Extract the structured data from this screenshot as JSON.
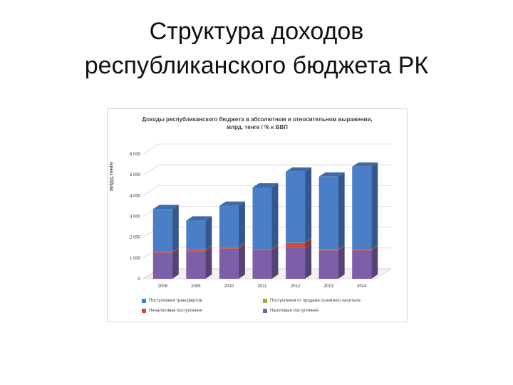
{
  "slide": {
    "title": "Структура доходов\nреспубликанского бюджета РК"
  },
  "chart_data": {
    "type": "bar",
    "stacked": true,
    "three_d": true,
    "title": "Доходы республиканского бюджета в абсолютном и относительном выражении,\nмлрд. тенге / % к ВВП",
    "ylabel": "млрд.тенге",
    "xlabel": "",
    "ylim": [
      0,
      6000
    ],
    "y_ticks": [
      "0",
      "1 000",
      "2 000",
      "3 000",
      "4 000",
      "5 000",
      "6 000"
    ],
    "categories": [
      "2008",
      "2009",
      "2010",
      "2011",
      "2012",
      "2013",
      "2014"
    ],
    "grid": true,
    "legend_position": "bottom",
    "series": [
      {
        "name": "Налоговые поступления",
        "color": "#7b5fa8",
        "values": [
          1250,
          1330,
          1450,
          1370,
          1480,
          1360,
          1350
        ]
      },
      {
        "name": "Неналоговые поступления",
        "color": "#d04a3e",
        "values": [
          40,
          50,
          60,
          60,
          240,
          40,
          40
        ]
      },
      {
        "name": "Поступления от продажи основного капитала",
        "color": "#8cb43c",
        "values": [
          10,
          10,
          10,
          10,
          10,
          10,
          10
        ]
      },
      {
        "name": "Поступления трансфертов",
        "color": "#4a7ec6",
        "values": [
          2050,
          1410,
          1990,
          2950,
          3420,
          3500,
          3990
        ]
      }
    ],
    "legend_entries": [
      {
        "label": "Поступления трансфертов",
        "color": "#4a7ec6"
      },
      {
        "label": "Поступления от продажи основного капитала",
        "color": "#8cb43c"
      },
      {
        "label": "Неналоговые поступления",
        "color": "#d04a3e"
      },
      {
        "label": "Налоговые поступления",
        "color": "#7b5fa8"
      }
    ]
  }
}
